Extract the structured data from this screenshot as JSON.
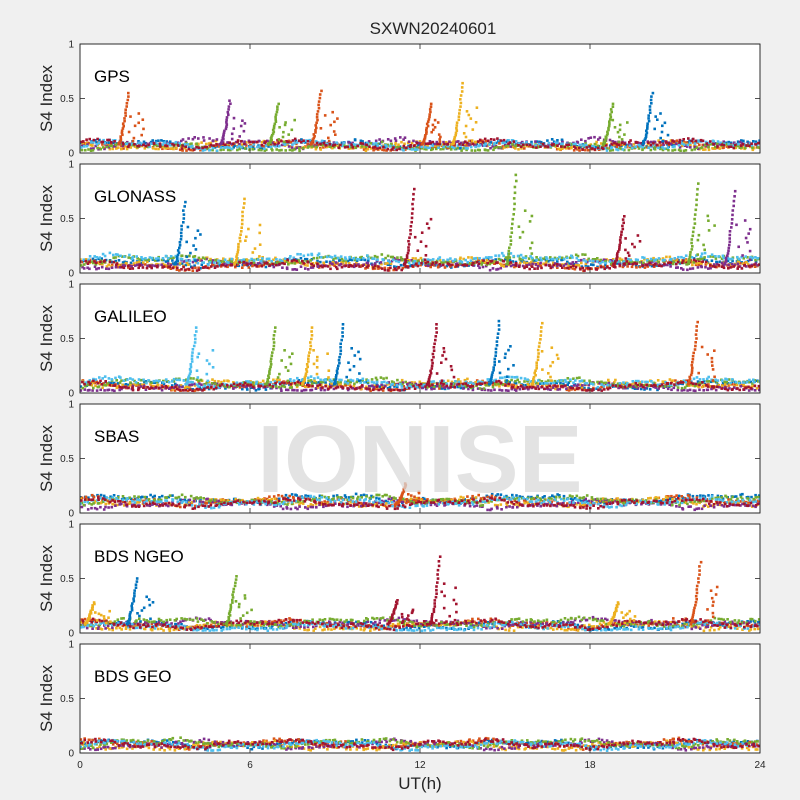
{
  "chart_data": {
    "type": "scatter",
    "title": "SXWN20240601",
    "xlabel": "UT(h)",
    "ylabel": "S4 Index",
    "xlim": [
      0,
      24
    ],
    "ylim": [
      0,
      1
    ],
    "xticks": [
      "0",
      "6",
      "12",
      "18",
      "24"
    ],
    "yticks": [
      "0",
      "0.5",
      "1"
    ],
    "grid": false,
    "watermark": "IONISE",
    "colors": [
      "#0072BD",
      "#D95319",
      "#EDB120",
      "#7E2F8E",
      "#77AC30",
      "#4DBEEE",
      "#A2142F"
    ],
    "panels": [
      {
        "label": "GPS",
        "base": [
          0.08,
          0.06,
          0.07,
          0.09,
          0.05,
          0.07,
          0.08
        ],
        "spikes": [
          {
            "x": 1.7,
            "peak": 0.55,
            "series": 1
          },
          {
            "x": 5.3,
            "peak": 0.48,
            "series": 3
          },
          {
            "x": 7.0,
            "peak": 0.45,
            "series": 4
          },
          {
            "x": 8.5,
            "peak": 0.57,
            "series": 1
          },
          {
            "x": 12.4,
            "peak": 0.45,
            "series": 1
          },
          {
            "x": 13.5,
            "peak": 0.64,
            "series": 2
          },
          {
            "x": 18.8,
            "peak": 0.45,
            "series": 4
          },
          {
            "x": 20.2,
            "peak": 0.55,
            "series": 0
          }
        ]
      },
      {
        "label": "GLONASS",
        "base": [
          0.09,
          0.07,
          0.1,
          0.08,
          0.12,
          0.13,
          0.07
        ],
        "spikes": [
          {
            "x": 3.7,
            "peak": 0.65,
            "series": 0
          },
          {
            "x": 5.8,
            "peak": 0.68,
            "series": 2
          },
          {
            "x": 11.8,
            "peak": 0.77,
            "series": 6
          },
          {
            "x": 15.4,
            "peak": 0.9,
            "series": 4
          },
          {
            "x": 19.2,
            "peak": 0.52,
            "series": 6
          },
          {
            "x": 21.8,
            "peak": 0.82,
            "series": 4
          },
          {
            "x": 23.1,
            "peak": 0.75,
            "series": 3
          }
        ]
      },
      {
        "label": "GALILEO",
        "base": [
          0.07,
          0.06,
          0.08,
          0.05,
          0.09,
          0.1,
          0.06
        ],
        "spikes": [
          {
            "x": 4.1,
            "peak": 0.6,
            "series": 5
          },
          {
            "x": 6.9,
            "peak": 0.6,
            "series": 4
          },
          {
            "x": 8.2,
            "peak": 0.6,
            "series": 2
          },
          {
            "x": 9.3,
            "peak": 0.63,
            "series": 0
          },
          {
            "x": 12.6,
            "peak": 0.63,
            "series": 6
          },
          {
            "x": 14.8,
            "peak": 0.66,
            "series": 0
          },
          {
            "x": 16.3,
            "peak": 0.64,
            "series": 2
          },
          {
            "x": 21.8,
            "peak": 0.65,
            "series": 1
          }
        ]
      },
      {
        "label": "SBAS",
        "base": [
          0.13,
          0.11,
          0.1,
          0.08,
          0.12,
          0.1,
          0.09
        ],
        "spikes": [
          {
            "x": 11.5,
            "peak": 0.27,
            "series": 1
          }
        ]
      },
      {
        "label": "BDS NGEO",
        "base": [
          0.07,
          0.08,
          0.06,
          0.09,
          0.1,
          0.05,
          0.08
        ],
        "spikes": [
          {
            "x": 0.5,
            "peak": 0.28,
            "series": 2
          },
          {
            "x": 2.0,
            "peak": 0.5,
            "series": 0
          },
          {
            "x": 5.5,
            "peak": 0.52,
            "series": 4
          },
          {
            "x": 11.2,
            "peak": 0.3,
            "series": 6
          },
          {
            "x": 12.7,
            "peak": 0.7,
            "series": 6
          },
          {
            "x": 19.0,
            "peak": 0.28,
            "series": 2
          },
          {
            "x": 21.9,
            "peak": 0.65,
            "series": 1
          }
        ]
      },
      {
        "label": "BDS GEO",
        "base": [
          0.08,
          0.085,
          0.065,
          0.075,
          0.09,
          0.07,
          0.08
        ],
        "spikes": []
      }
    ]
  }
}
